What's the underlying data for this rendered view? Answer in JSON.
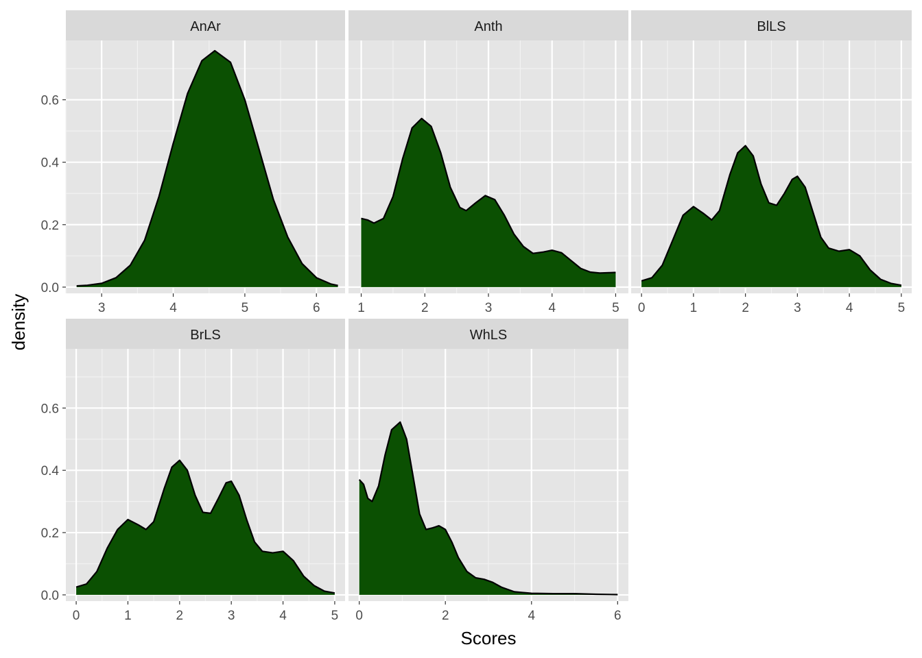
{
  "chart_data": {
    "type": "area",
    "xlabel": "Scores",
    "ylabel": "density",
    "ylim": [
      -0.02,
      0.79
    ],
    "y_ticks": [
      0.0,
      0.2,
      0.4,
      0.6
    ],
    "y_tick_labels": [
      "0.0",
      "0.2",
      "0.4",
      "0.6"
    ],
    "fill_color": "#0B5002",
    "line_color": "#000000",
    "panel_background": "#E5E5E5",
    "strip_background": "#D9D9D9",
    "grid": true,
    "facets": [
      {
        "name": "AnAr",
        "xlim": [
          2.5,
          6.4
        ],
        "x_ticks": [
          3,
          4,
          5,
          6
        ],
        "x_tick_labels": [
          "3",
          "4",
          "5",
          "6"
        ],
        "x_minor": [
          2.5,
          3.5,
          4.5,
          5.5
        ],
        "points": [
          [
            2.65,
            0.004
          ],
          [
            2.8,
            0.006
          ],
          [
            3.0,
            0.012
          ],
          [
            3.2,
            0.03
          ],
          [
            3.4,
            0.07
          ],
          [
            3.6,
            0.15
          ],
          [
            3.8,
            0.29
          ],
          [
            4.0,
            0.46
          ],
          [
            4.2,
            0.62
          ],
          [
            4.4,
            0.725
          ],
          [
            4.58,
            0.757
          ],
          [
            4.8,
            0.72
          ],
          [
            5.0,
            0.6
          ],
          [
            5.2,
            0.44
          ],
          [
            5.4,
            0.28
          ],
          [
            5.6,
            0.16
          ],
          [
            5.8,
            0.075
          ],
          [
            6.0,
            0.03
          ],
          [
            6.2,
            0.01
          ],
          [
            6.3,
            0.005
          ]
        ]
      },
      {
        "name": "Anth",
        "xlim": [
          0.8,
          5.2
        ],
        "x_ticks": [
          1,
          2,
          3,
          4,
          5
        ],
        "x_tick_labels": [
          "1",
          "2",
          "3",
          "4",
          "5"
        ],
        "x_minor": [
          1.5,
          2.5,
          3.5,
          4.5
        ],
        "points": [
          [
            1.0,
            0.22
          ],
          [
            1.1,
            0.215
          ],
          [
            1.2,
            0.205
          ],
          [
            1.35,
            0.22
          ],
          [
            1.5,
            0.29
          ],
          [
            1.65,
            0.41
          ],
          [
            1.8,
            0.51
          ],
          [
            1.95,
            0.54
          ],
          [
            2.1,
            0.515
          ],
          [
            2.25,
            0.43
          ],
          [
            2.4,
            0.32
          ],
          [
            2.55,
            0.255
          ],
          [
            2.65,
            0.245
          ],
          [
            2.8,
            0.27
          ],
          [
            2.95,
            0.293
          ],
          [
            3.1,
            0.28
          ],
          [
            3.25,
            0.23
          ],
          [
            3.4,
            0.17
          ],
          [
            3.55,
            0.13
          ],
          [
            3.7,
            0.108
          ],
          [
            3.85,
            0.112
          ],
          [
            4.0,
            0.118
          ],
          [
            4.15,
            0.11
          ],
          [
            4.3,
            0.085
          ],
          [
            4.45,
            0.06
          ],
          [
            4.6,
            0.048
          ],
          [
            4.75,
            0.045
          ],
          [
            4.9,
            0.046
          ],
          [
            5.0,
            0.047
          ]
        ]
      },
      {
        "name": "BlLS",
        "xlim": [
          -0.2,
          5.2
        ],
        "x_ticks": [
          0,
          1,
          2,
          3,
          4,
          5
        ],
        "x_tick_labels": [
          "0",
          "1",
          "2",
          "3",
          "4",
          "5"
        ],
        "x_minor": [
          0.5,
          1.5,
          2.5,
          3.5,
          4.5
        ],
        "points": [
          [
            0.0,
            0.02
          ],
          [
            0.2,
            0.03
          ],
          [
            0.4,
            0.07
          ],
          [
            0.6,
            0.15
          ],
          [
            0.8,
            0.23
          ],
          [
            1.0,
            0.258
          ],
          [
            1.2,
            0.235
          ],
          [
            1.35,
            0.215
          ],
          [
            1.5,
            0.245
          ],
          [
            1.7,
            0.36
          ],
          [
            1.85,
            0.43
          ],
          [
            2.0,
            0.453
          ],
          [
            2.15,
            0.42
          ],
          [
            2.3,
            0.33
          ],
          [
            2.45,
            0.27
          ],
          [
            2.6,
            0.262
          ],
          [
            2.75,
            0.3
          ],
          [
            2.9,
            0.345
          ],
          [
            3.0,
            0.355
          ],
          [
            3.15,
            0.32
          ],
          [
            3.3,
            0.24
          ],
          [
            3.45,
            0.16
          ],
          [
            3.6,
            0.125
          ],
          [
            3.8,
            0.115
          ],
          [
            4.0,
            0.12
          ],
          [
            4.2,
            0.1
          ],
          [
            4.4,
            0.055
          ],
          [
            4.6,
            0.025
          ],
          [
            4.8,
            0.012
          ],
          [
            5.0,
            0.006
          ]
        ]
      },
      {
        "name": "BrLS",
        "xlim": [
          -0.2,
          5.2
        ],
        "x_ticks": [
          0,
          1,
          2,
          3,
          4,
          5
        ],
        "x_tick_labels": [
          "0",
          "1",
          "2",
          "3",
          "4",
          "5"
        ],
        "x_minor": [
          0.5,
          1.5,
          2.5,
          3.5,
          4.5
        ],
        "points": [
          [
            0.0,
            0.025
          ],
          [
            0.2,
            0.035
          ],
          [
            0.4,
            0.075
          ],
          [
            0.6,
            0.15
          ],
          [
            0.8,
            0.21
          ],
          [
            1.0,
            0.242
          ],
          [
            1.2,
            0.225
          ],
          [
            1.35,
            0.21
          ],
          [
            1.5,
            0.235
          ],
          [
            1.7,
            0.34
          ],
          [
            1.85,
            0.41
          ],
          [
            2.0,
            0.432
          ],
          [
            2.15,
            0.4
          ],
          [
            2.3,
            0.32
          ],
          [
            2.45,
            0.265
          ],
          [
            2.6,
            0.262
          ],
          [
            2.75,
            0.31
          ],
          [
            2.9,
            0.36
          ],
          [
            3.0,
            0.365
          ],
          [
            3.15,
            0.32
          ],
          [
            3.3,
            0.24
          ],
          [
            3.45,
            0.17
          ],
          [
            3.6,
            0.14
          ],
          [
            3.8,
            0.135
          ],
          [
            4.0,
            0.14
          ],
          [
            4.2,
            0.11
          ],
          [
            4.4,
            0.06
          ],
          [
            4.6,
            0.03
          ],
          [
            4.8,
            0.012
          ],
          [
            5.0,
            0.006
          ]
        ]
      },
      {
        "name": "WhLS",
        "xlim": [
          -0.25,
          6.25
        ],
        "x_ticks": [
          0,
          2,
          4,
          6
        ],
        "x_tick_labels": [
          "0",
          "2",
          "4",
          "6"
        ],
        "x_minor": [
          1,
          3,
          5
        ],
        "points": [
          [
            0.0,
            0.37
          ],
          [
            0.1,
            0.355
          ],
          [
            0.2,
            0.31
          ],
          [
            0.3,
            0.3
          ],
          [
            0.45,
            0.35
          ],
          [
            0.6,
            0.45
          ],
          [
            0.75,
            0.53
          ],
          [
            0.95,
            0.555
          ],
          [
            1.1,
            0.5
          ],
          [
            1.25,
            0.38
          ],
          [
            1.4,
            0.26
          ],
          [
            1.55,
            0.21
          ],
          [
            1.7,
            0.215
          ],
          [
            1.85,
            0.222
          ],
          [
            2.0,
            0.21
          ],
          [
            2.15,
            0.17
          ],
          [
            2.3,
            0.12
          ],
          [
            2.5,
            0.075
          ],
          [
            2.7,
            0.055
          ],
          [
            2.9,
            0.05
          ],
          [
            3.1,
            0.04
          ],
          [
            3.3,
            0.025
          ],
          [
            3.6,
            0.01
          ],
          [
            4.0,
            0.005
          ],
          [
            4.5,
            0.004
          ],
          [
            5.0,
            0.004
          ],
          [
            5.5,
            0.002
          ],
          [
            6.0,
            0.001
          ]
        ]
      }
    ]
  }
}
